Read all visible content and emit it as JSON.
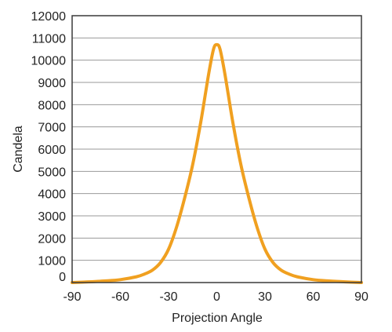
{
  "chart_data": {
    "type": "line",
    "title": "",
    "xlabel": "Projection Angle",
    "ylabel": "Candela",
    "xlim": [
      -90,
      90
    ],
    "ylim": [
      0,
      12000
    ],
    "x_ticks": [
      -90,
      -60,
      -30,
      0,
      30,
      60,
      90
    ],
    "y_ticks": [
      0,
      1000,
      2000,
      3000,
      4000,
      5000,
      6000,
      7000,
      8000,
      9000,
      10000,
      11000,
      12000
    ],
    "grid": "horizontal",
    "legend": "none",
    "series": [
      {
        "color": "#f0a020",
        "x": [
          -90,
          -80,
          -70,
          -60,
          -50,
          -45,
          -40,
          -35,
          -30,
          -25,
          -20,
          -15,
          -10,
          -5,
          -2,
          0,
          2,
          5,
          10,
          15,
          20,
          25,
          30,
          35,
          40,
          45,
          50,
          60,
          70,
          80,
          90
        ],
        "y": [
          0,
          30,
          70,
          130,
          260,
          380,
          560,
          900,
          1500,
          2500,
          3800,
          5300,
          7200,
          9400,
          10500,
          10700,
          10500,
          9400,
          7200,
          5300,
          3800,
          2500,
          1500,
          900,
          560,
          380,
          260,
          130,
          70,
          30,
          0
        ]
      }
    ]
  }
}
